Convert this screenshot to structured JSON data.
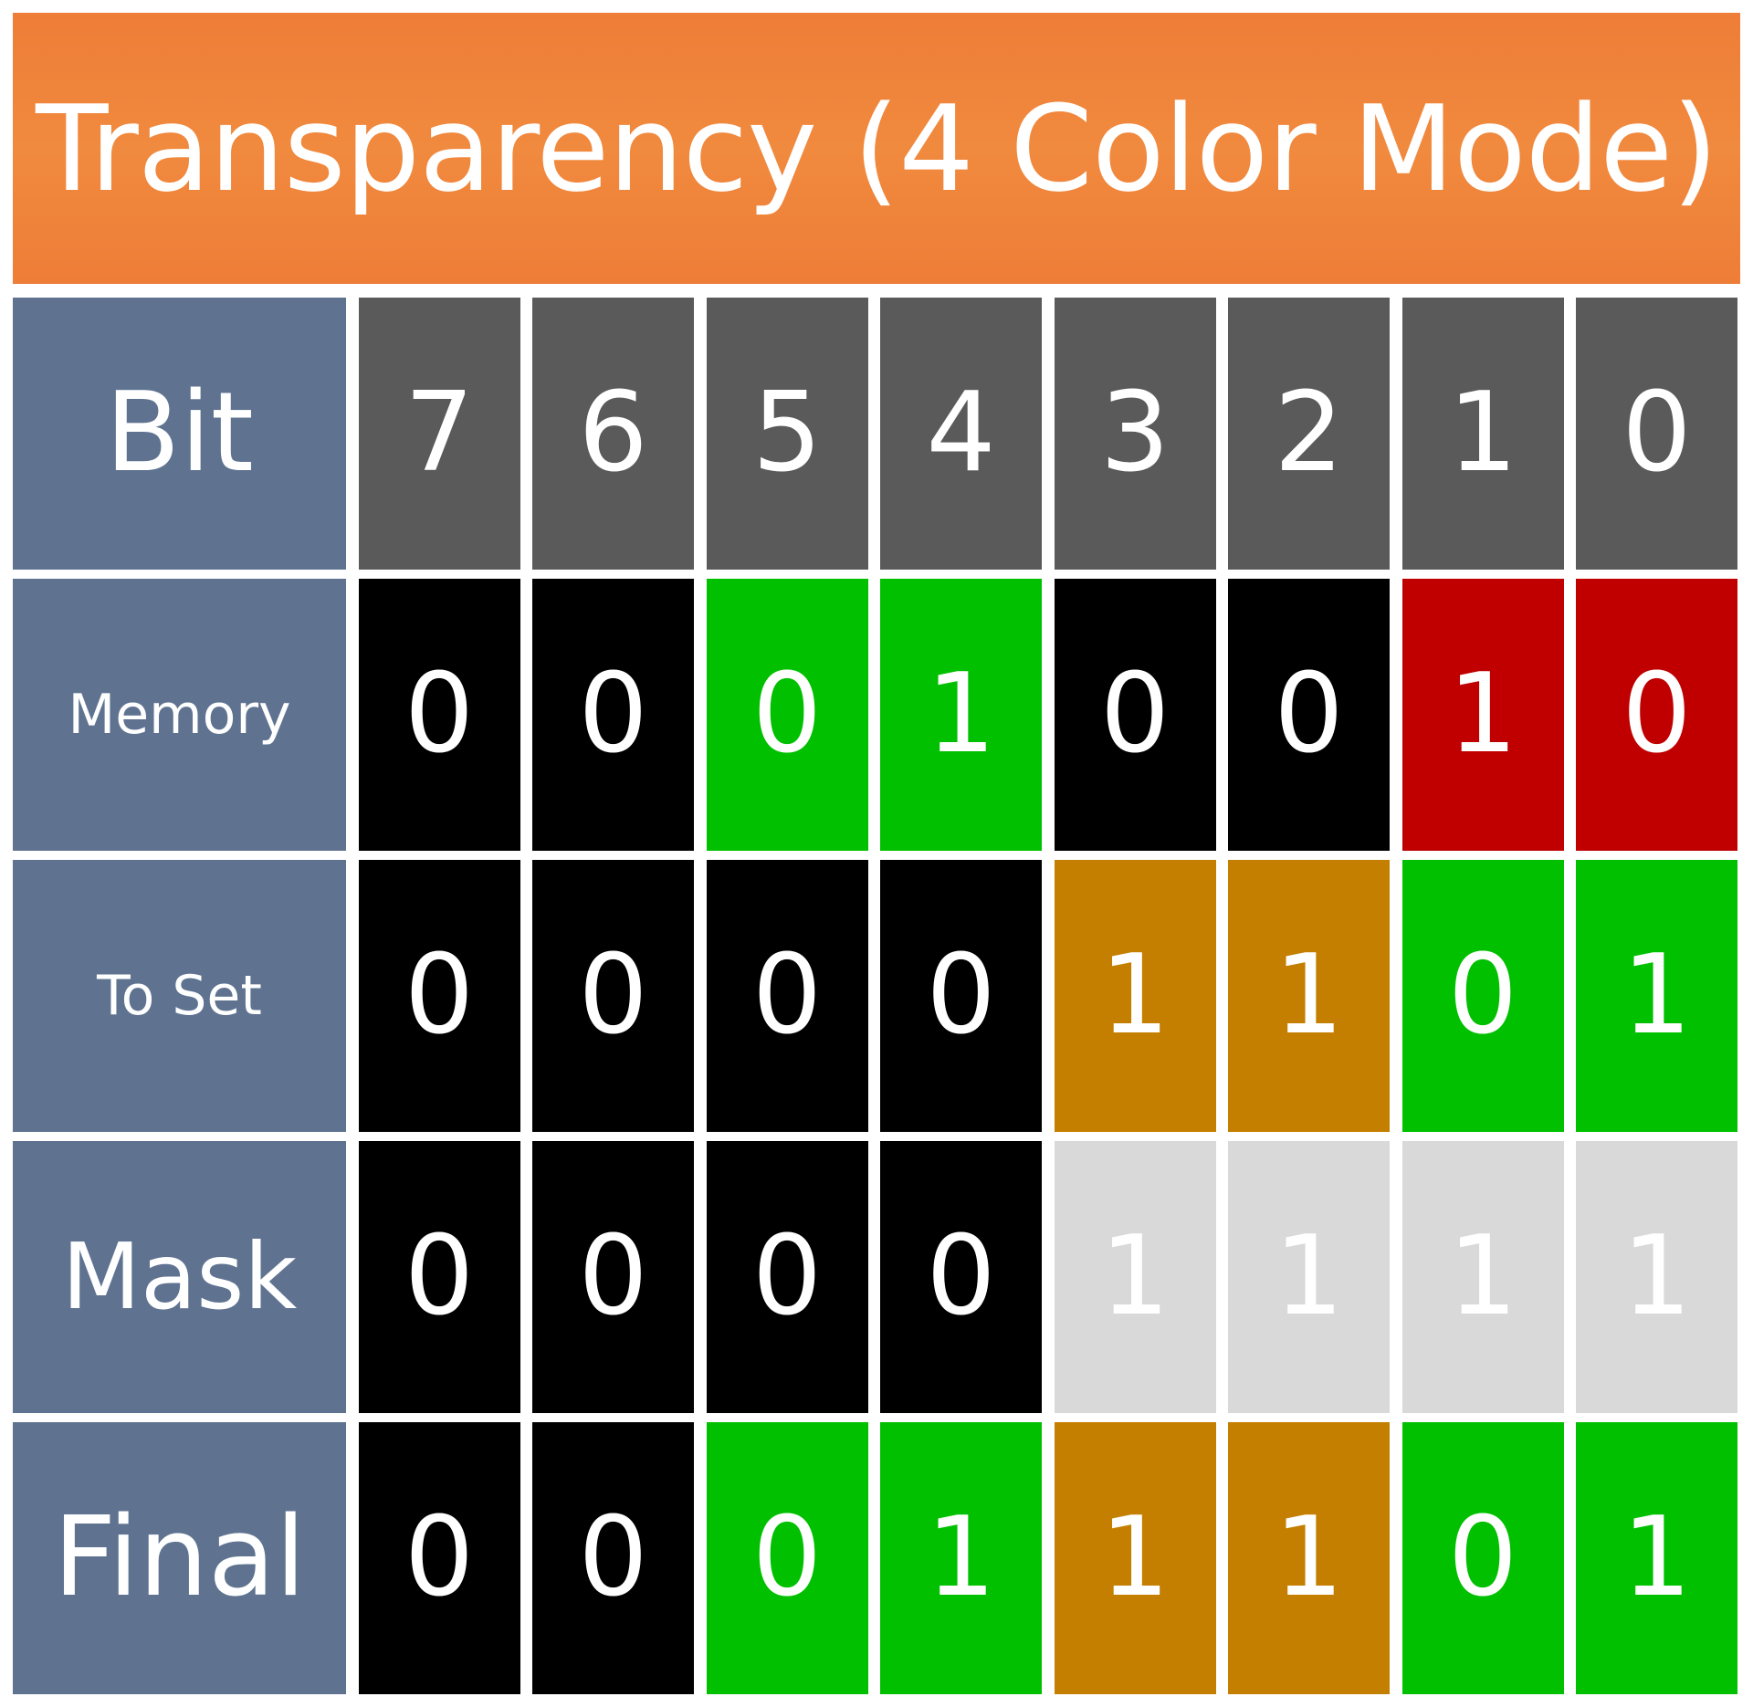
{
  "title": "Transparency (4 Color Mode)",
  "colors": {
    "title_background": "#f08a3e",
    "row_label_background": "#5f7391",
    "bit_header": "#5a5a5a",
    "black": "#000000",
    "green": "#00c000",
    "red": "#c00000",
    "gold": "#c47f00",
    "light_gray": "#d9d9d9",
    "text": "#ffffff"
  },
  "rows": [
    {
      "label": "Bit",
      "cells": [
        {
          "value": "7",
          "color": "bit_header"
        },
        {
          "value": "6",
          "color": "bit_header"
        },
        {
          "value": "5",
          "color": "bit_header"
        },
        {
          "value": "4",
          "color": "bit_header"
        },
        {
          "value": "3",
          "color": "bit_header"
        },
        {
          "value": "2",
          "color": "bit_header"
        },
        {
          "value": "1",
          "color": "bit_header"
        },
        {
          "value": "0",
          "color": "bit_header"
        }
      ]
    },
    {
      "label": "Memory",
      "cells": [
        {
          "value": "0",
          "color": "black"
        },
        {
          "value": "0",
          "color": "black"
        },
        {
          "value": "0",
          "color": "green"
        },
        {
          "value": "1",
          "color": "green"
        },
        {
          "value": "0",
          "color": "black"
        },
        {
          "value": "0",
          "color": "black"
        },
        {
          "value": "1",
          "color": "red"
        },
        {
          "value": "0",
          "color": "red"
        }
      ]
    },
    {
      "label": "To Set",
      "cells": [
        {
          "value": "0",
          "color": "black"
        },
        {
          "value": "0",
          "color": "black"
        },
        {
          "value": "0",
          "color": "black"
        },
        {
          "value": "0",
          "color": "black"
        },
        {
          "value": "1",
          "color": "gold"
        },
        {
          "value": "1",
          "color": "gold"
        },
        {
          "value": "0",
          "color": "green"
        },
        {
          "value": "1",
          "color": "green"
        }
      ]
    },
    {
      "label": "Mask",
      "cells": [
        {
          "value": "0",
          "color": "black"
        },
        {
          "value": "0",
          "color": "black"
        },
        {
          "value": "0",
          "color": "black"
        },
        {
          "value": "0",
          "color": "black"
        },
        {
          "value": "1",
          "color": "light_gray"
        },
        {
          "value": "1",
          "color": "light_gray"
        },
        {
          "value": "1",
          "color": "light_gray"
        },
        {
          "value": "1",
          "color": "light_gray"
        }
      ]
    },
    {
      "label": "Final",
      "cells": [
        {
          "value": "0",
          "color": "black"
        },
        {
          "value": "0",
          "color": "black"
        },
        {
          "value": "0",
          "color": "green"
        },
        {
          "value": "1",
          "color": "green"
        },
        {
          "value": "1",
          "color": "gold"
        },
        {
          "value": "1",
          "color": "gold"
        },
        {
          "value": "0",
          "color": "green"
        },
        {
          "value": "1",
          "color": "green"
        }
      ]
    }
  ]
}
